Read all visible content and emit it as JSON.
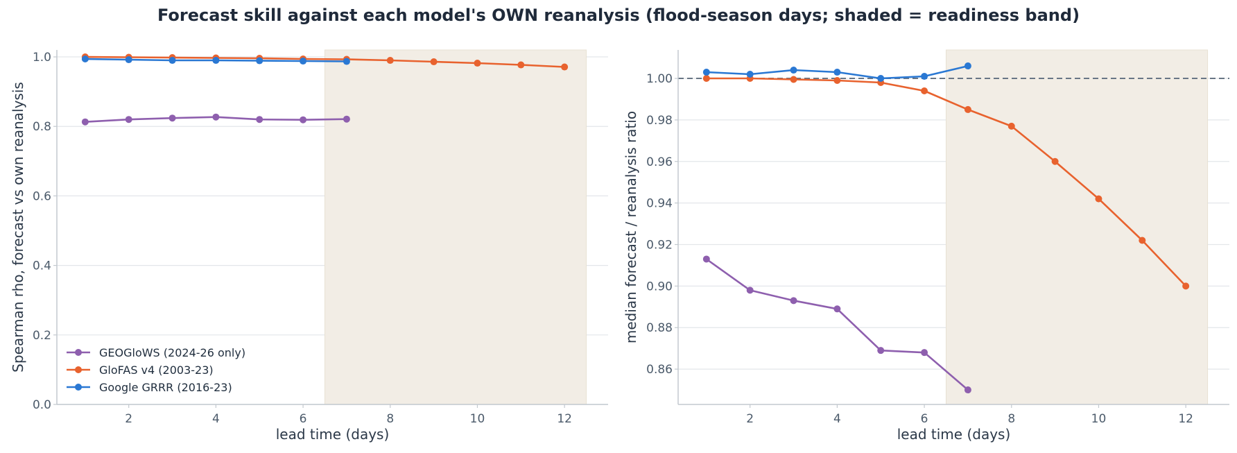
{
  "suptitle": "Forecast skill against each model's OWN reanalysis (flood-season days; shaded = readiness band)",
  "colors": {
    "geoglows": "#8e5fae",
    "glofas": "#e8622e",
    "google": "#2a78d3",
    "band": "#f2ede5",
    "band_edge": "#e8e1d3",
    "grid": "#e3e6ea",
    "axis": "#c3c9cf",
    "refline": "#687585"
  },
  "chart_data": [
    {
      "type": "line",
      "title": "",
      "xlabel": "lead time (days)",
      "ylabel": "Spearman rho, forecast vs own reanalysis",
      "xlim": [
        0.35,
        13.0
      ],
      "ylim": [
        0.0,
        1.02
      ],
      "xticks": [
        2,
        4,
        6,
        8,
        10,
        12
      ],
      "yticks": [
        0.0,
        0.2,
        0.4,
        0.6,
        0.8,
        1.0
      ],
      "ytick_labels": [
        "0.0",
        "0.2",
        "0.4",
        "0.6",
        "0.8",
        "1.0"
      ],
      "band": [
        6.5,
        12.5
      ],
      "grid": "horizontal",
      "legend": "lower-left",
      "series": [
        {
          "key": "geoglows",
          "name": "GEOGloWS (2024-26 only)",
          "x": [
            1,
            2,
            3,
            4,
            5,
            6,
            7
          ],
          "values": [
            0.813,
            0.82,
            0.824,
            0.827,
            0.82,
            0.819,
            0.821
          ]
        },
        {
          "key": "glofas",
          "name": "GloFAS v4 (2003-23)",
          "x": [
            1,
            2,
            3,
            4,
            5,
            6,
            7,
            8,
            9,
            10,
            11,
            12
          ],
          "values": [
            1.0,
            0.999,
            0.998,
            0.997,
            0.996,
            0.994,
            0.993,
            0.99,
            0.986,
            0.982,
            0.977,
            0.971
          ]
        },
        {
          "key": "google",
          "name": "Google GRRR (2016-23)",
          "x": [
            1,
            2,
            3,
            4,
            5,
            6,
            7
          ],
          "values": [
            0.994,
            0.992,
            0.99,
            0.99,
            0.989,
            0.988,
            0.987
          ]
        }
      ]
    },
    {
      "type": "line",
      "title": "",
      "xlabel": "lead time (days)",
      "ylabel": "median forecast / reanalysis ratio",
      "xlim": [
        0.35,
        13.0
      ],
      "ylim": [
        0.843,
        1.0137
      ],
      "xticks": [
        2,
        4,
        6,
        8,
        10,
        12
      ],
      "yticks": [
        0.86,
        0.88,
        0.9,
        0.92,
        0.94,
        0.96,
        0.98,
        1.0
      ],
      "ytick_labels": [
        "0.86",
        "0.88",
        "0.90",
        "0.92",
        "0.94",
        "0.96",
        "0.98",
        "1.00"
      ],
      "band": [
        6.5,
        12.5
      ],
      "reference_line": 1.0,
      "grid": "horizontal",
      "series": [
        {
          "key": "geoglows",
          "name": "GEOGloWS (2024-26 only)",
          "x": [
            1,
            2,
            3,
            4,
            5,
            6,
            7
          ],
          "values": [
            0.913,
            0.898,
            0.893,
            0.889,
            0.869,
            0.868,
            0.85
          ]
        },
        {
          "key": "glofas",
          "name": "GloFAS v4 (2003-23)",
          "x": [
            1,
            2,
            3,
            4,
            5,
            6,
            7,
            8,
            9,
            10,
            11,
            12
          ],
          "values": [
            1.0,
            1.0,
            0.9995,
            0.999,
            0.998,
            0.994,
            0.985,
            0.977,
            0.96,
            0.942,
            0.922,
            0.9
          ]
        },
        {
          "key": "google",
          "name": "Google GRRR (2016-23)",
          "x": [
            1,
            2,
            3,
            4,
            5,
            6,
            7
          ],
          "values": [
            1.003,
            1.002,
            1.004,
            1.003,
            1.0,
            1.001,
            1.006
          ]
        }
      ]
    }
  ]
}
